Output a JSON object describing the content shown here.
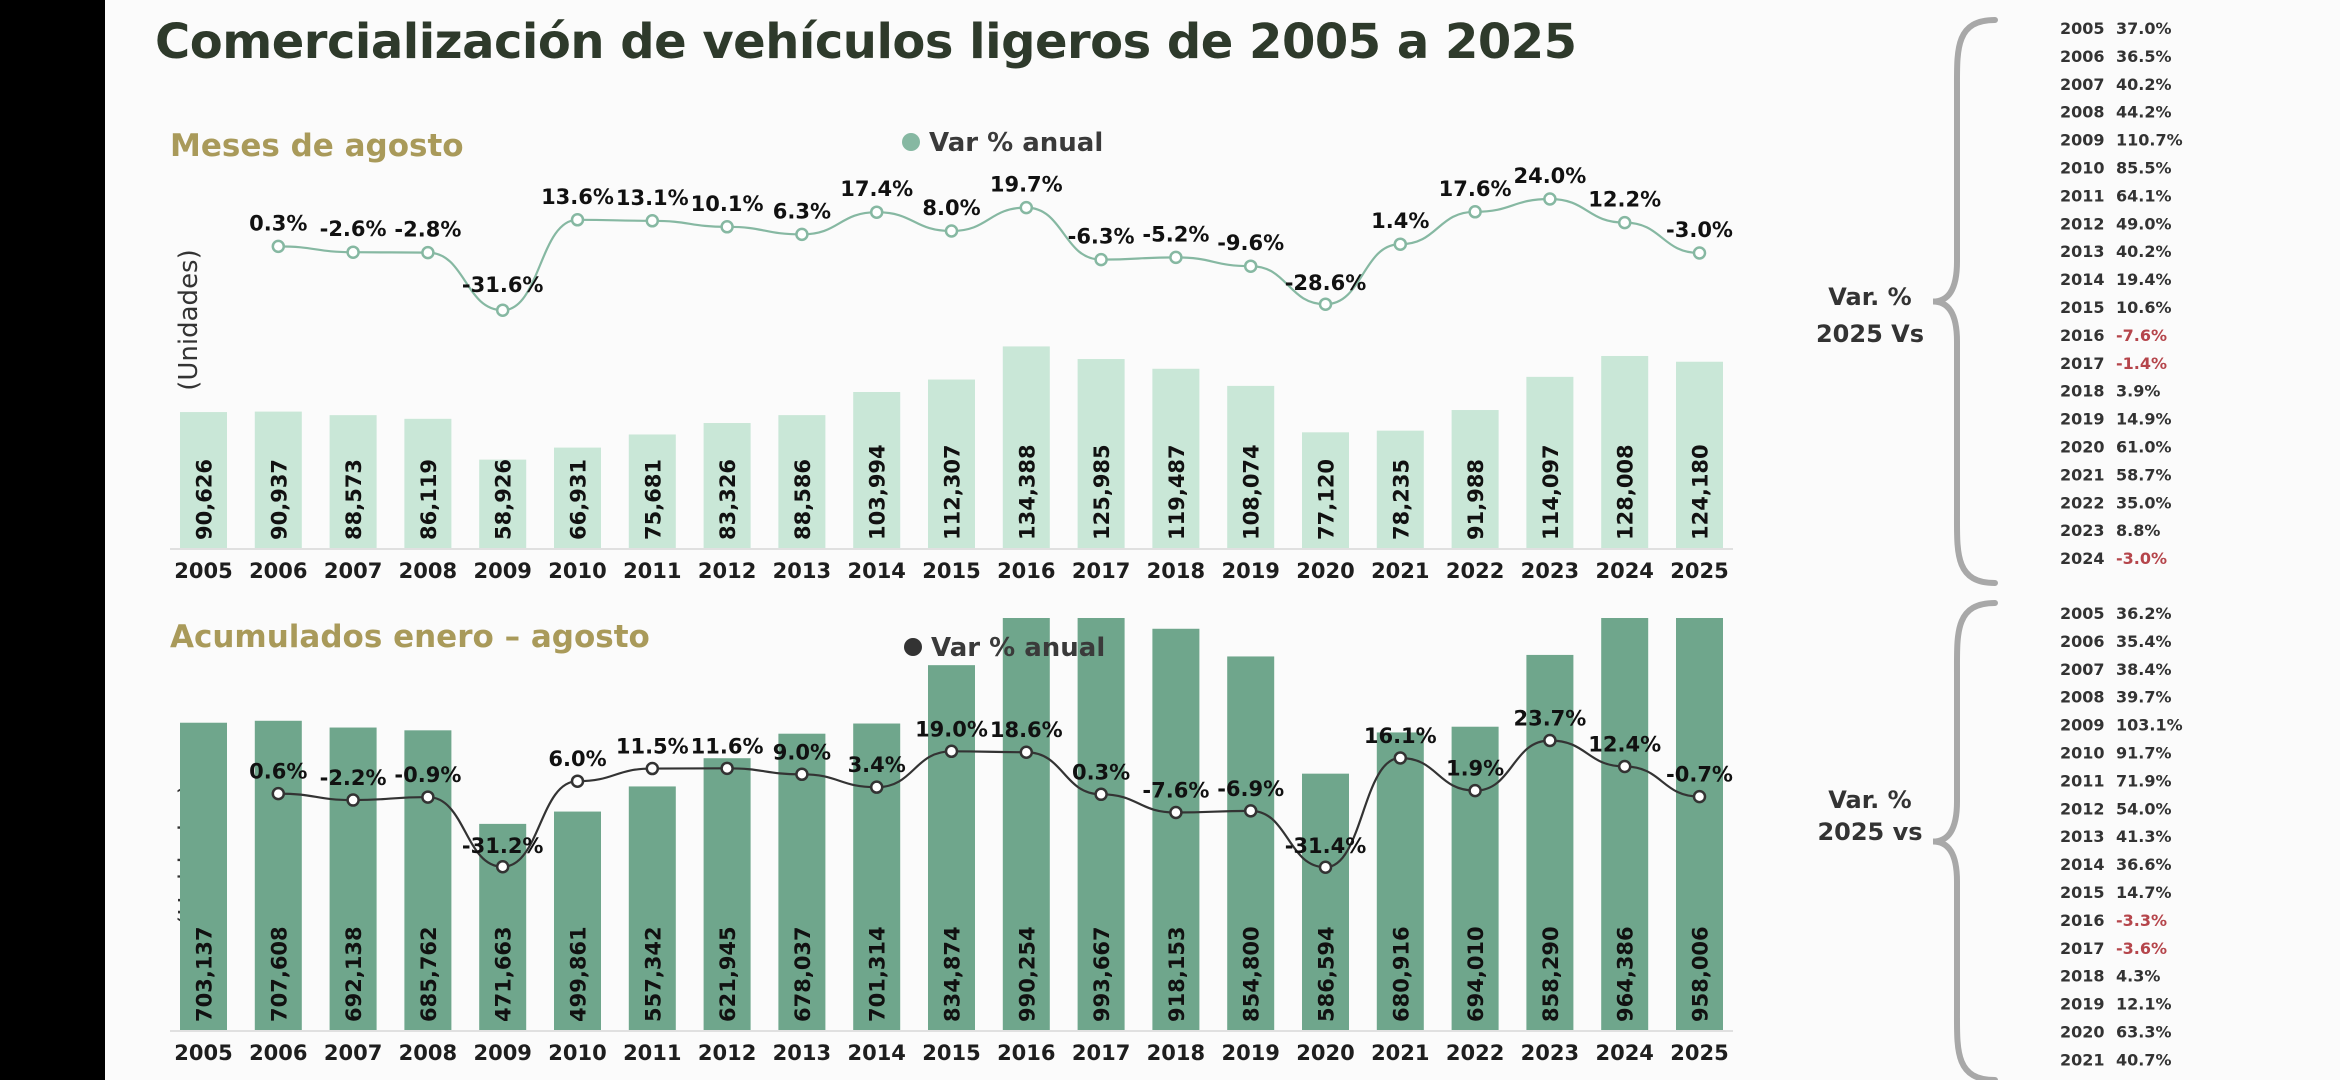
{
  "title": "Comercialización de vehículos ligeros de 2005 a 2025",
  "colors": {
    "top_bar": "#c9e7d7",
    "top_line": "#86b8a2",
    "bottom_bar": "#6fa68c",
    "bottom_line": "#333333",
    "negative": "#b5454b"
  },
  "chart_data": [
    {
      "type": "bar",
      "section_title": "Meses de agosto",
      "legend": "Var % anual",
      "ylabel": "(Unidades)",
      "categories": [
        "2005",
        "2006",
        "2007",
        "2008",
        "2009",
        "2010",
        "2011",
        "2012",
        "2013",
        "2014",
        "2015",
        "2016",
        "2017",
        "2018",
        "2019",
        "2020",
        "2021",
        "2022",
        "2023",
        "2024",
        "2025"
      ],
      "values": [
        90626,
        90937,
        88573,
        86119,
        58926,
        66931,
        75681,
        83326,
        88586,
        103994,
        112307,
        134388,
        125985,
        119487,
        108074,
        77120,
        78235,
        91988,
        114097,
        128008,
        124180
      ],
      "value_labels": [
        "90,626",
        "90,937",
        "88,573",
        "86,119",
        "58,926",
        "66,931",
        "75,681",
        "83,326",
        "88,586",
        "103,994",
        "112,307",
        "134,388",
        "125,985",
        "119,487",
        "108,074",
        "77,120",
        "78,235",
        "91,988",
        "114,097",
        "128,008",
        "124,180"
      ],
      "line_series": {
        "name": "Var % anual",
        "values": [
          null,
          0.3,
          -2.6,
          -2.8,
          -31.6,
          13.6,
          13.1,
          10.1,
          6.3,
          17.4,
          8.0,
          19.7,
          -6.3,
          -5.2,
          -9.6,
          -28.6,
          1.4,
          17.6,
          24.0,
          12.2,
          -3.0
        ],
        "labels": [
          "",
          "0.3%",
          "-2.6%",
          "-2.8%",
          "-31.6%",
          "13.6%",
          "13.1%",
          "10.1%",
          "6.3%",
          "17.4%",
          "8.0%",
          "19.7%",
          "-6.3%",
          "-5.2%",
          "-9.6%",
          "-28.6%",
          "1.4%",
          "17.6%",
          "24.0%",
          "12.2%",
          "-3.0%"
        ]
      },
      "comparison": {
        "heading": [
          "Var. %",
          "2025 Vs"
        ],
        "rows": [
          {
            "year": "2005",
            "value": "37.0%"
          },
          {
            "year": "2006",
            "value": "36.5%"
          },
          {
            "year": "2007",
            "value": "40.2%"
          },
          {
            "year": "2008",
            "value": "44.2%"
          },
          {
            "year": "2009",
            "value": "110.7%"
          },
          {
            "year": "2010",
            "value": "85.5%"
          },
          {
            "year": "2011",
            "value": "64.1%"
          },
          {
            "year": "2012",
            "value": "49.0%"
          },
          {
            "year": "2013",
            "value": "40.2%"
          },
          {
            "year": "2014",
            "value": "19.4%"
          },
          {
            "year": "2015",
            "value": "10.6%"
          },
          {
            "year": "2016",
            "value": "-7.6%"
          },
          {
            "year": "2017",
            "value": "-1.4%"
          },
          {
            "year": "2018",
            "value": "3.9%"
          },
          {
            "year": "2019",
            "value": "14.9%"
          },
          {
            "year": "2020",
            "value": "61.0%"
          },
          {
            "year": "2021",
            "value": "58.7%"
          },
          {
            "year": "2022",
            "value": "35.0%"
          },
          {
            "year": "2023",
            "value": "8.8%"
          },
          {
            "year": "2024",
            "value": "-3.0%"
          }
        ]
      }
    },
    {
      "type": "bar",
      "section_title": "Acumulados enero – agosto",
      "legend": "Var % anual",
      "ylabel": "(Unidades)",
      "categories": [
        "2005",
        "2006",
        "2007",
        "2008",
        "2009",
        "2010",
        "2011",
        "2012",
        "2013",
        "2014",
        "2015",
        "2016",
        "2017",
        "2018",
        "2019",
        "2020",
        "2021",
        "2022",
        "2023",
        "2024",
        "2025"
      ],
      "values": [
        703137,
        707608,
        692138,
        685762,
        471663,
        499861,
        557342,
        621945,
        678037,
        701314,
        834874,
        990254,
        993667,
        918153,
        854800,
        586594,
        680916,
        694010,
        858290,
        964386,
        958006
      ],
      "value_labels": [
        "703,137",
        "707,608",
        "692,138",
        "685,762",
        "471,663",
        "499,861",
        "557,342",
        "621,945",
        "678,037",
        "701,314",
        "834,874",
        "990,254",
        "993,667",
        "918,153",
        "854,800",
        "586,594",
        "680,916",
        "694,010",
        "858,290",
        "964,386",
        "958,006"
      ],
      "line_series": {
        "name": "Var % anual",
        "values": [
          null,
          0.6,
          -2.2,
          -0.9,
          -31.2,
          6.0,
          11.5,
          11.6,
          9.0,
          3.4,
          19.0,
          18.6,
          0.3,
          -7.6,
          -6.9,
          -31.4,
          16.1,
          1.9,
          23.7,
          12.4,
          -0.7
        ],
        "labels": [
          "",
          "0.6%",
          "-2.2%",
          "-0.9%",
          "-31.2%",
          "6.0%",
          "11.5%",
          "11.6%",
          "9.0%",
          "3.4%",
          "19.0%",
          "18.6%",
          "0.3%",
          "-7.6%",
          "-6.9%",
          "-31.4%",
          "16.1%",
          "1.9%",
          "23.7%",
          "12.4%",
          "-0.7%"
        ]
      },
      "comparison": {
        "heading": [
          "Var. %",
          "2025 vs"
        ],
        "rows": [
          {
            "year": "2005",
            "value": "36.2%"
          },
          {
            "year": "2006",
            "value": "35.4%"
          },
          {
            "year": "2007",
            "value": "38.4%"
          },
          {
            "year": "2008",
            "value": "39.7%"
          },
          {
            "year": "2009",
            "value": "103.1%"
          },
          {
            "year": "2010",
            "value": "91.7%"
          },
          {
            "year": "2011",
            "value": "71.9%"
          },
          {
            "year": "2012",
            "value": "54.0%"
          },
          {
            "year": "2013",
            "value": "41.3%"
          },
          {
            "year": "2014",
            "value": "36.6%"
          },
          {
            "year": "2015",
            "value": "14.7%"
          },
          {
            "year": "2016",
            "value": "-3.3%"
          },
          {
            "year": "2017",
            "value": "-3.6%"
          },
          {
            "year": "2018",
            "value": "4.3%"
          },
          {
            "year": "2019",
            "value": "12.1%"
          },
          {
            "year": "2020",
            "value": "63.3%"
          },
          {
            "year": "2021",
            "value": "40.7%"
          }
        ]
      }
    }
  ]
}
